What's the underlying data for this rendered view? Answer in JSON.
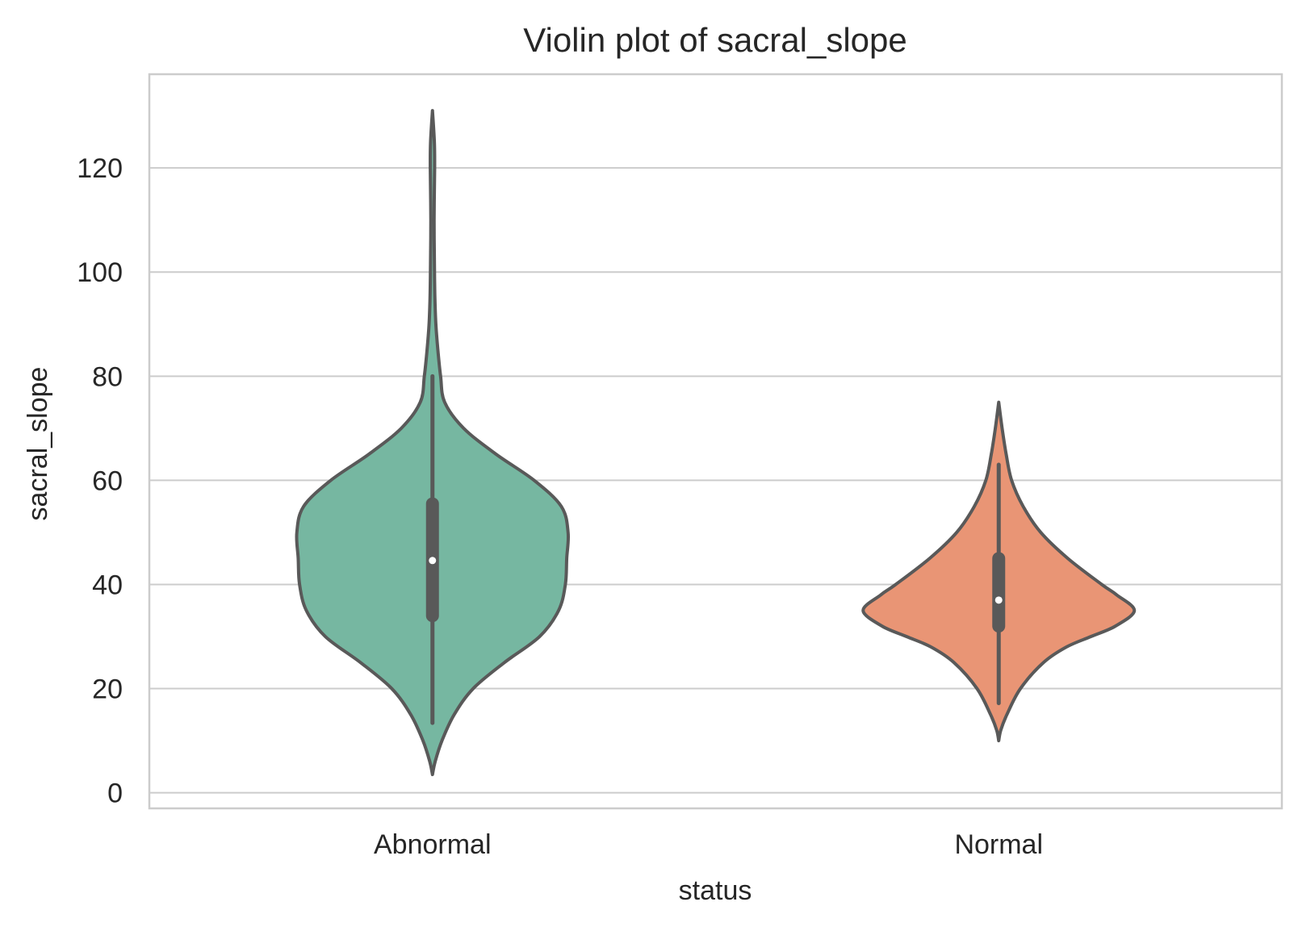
{
  "chart_data": {
    "type": "violin",
    "title": "Violin plot of sacral_slope",
    "xlabel": "status",
    "ylabel": "sacral_slope",
    "ylim": [
      -3,
      138
    ],
    "yticks": [
      0,
      20,
      40,
      60,
      80,
      100,
      120
    ],
    "grid": "horizontal",
    "categories": [
      "Abnormal",
      "Normal"
    ],
    "colors": {
      "Abnormal": "#76b7a1",
      "Normal": "#e99575",
      "outline": "#595959",
      "median_dot": "#ffffff",
      "grid": "#cccccc"
    },
    "series": [
      {
        "category": "Abnormal",
        "min": 3.5,
        "max": 131,
        "whisker_low": 13.4,
        "whisker_high": 80,
        "q1": 34,
        "median": 44.6,
        "q3": 55.5,
        "density": [
          [
            3.5,
            0.0
          ],
          [
            6,
            0.02
          ],
          [
            10,
            0.07
          ],
          [
            15,
            0.16
          ],
          [
            20,
            0.3
          ],
          [
            25,
            0.53
          ],
          [
            30,
            0.79
          ],
          [
            35,
            0.93
          ],
          [
            40,
            0.98
          ],
          [
            45,
            0.99
          ],
          [
            50,
            1.0
          ],
          [
            55,
            0.95
          ],
          [
            60,
            0.75
          ],
          [
            65,
            0.47
          ],
          [
            70,
            0.23
          ],
          [
            75,
            0.09
          ],
          [
            80,
            0.06
          ],
          [
            85,
            0.04
          ],
          [
            90,
            0.025
          ],
          [
            95,
            0.018
          ],
          [
            100,
            0.015
          ],
          [
            110,
            0.012
          ],
          [
            120,
            0.016
          ],
          [
            125,
            0.014
          ],
          [
            131,
            0.0
          ]
        ]
      },
      {
        "category": "Normal",
        "min": 10,
        "max": 75,
        "whisker_low": 17.2,
        "whisker_high": 63,
        "q1": 32,
        "median": 37,
        "q3": 45,
        "density": [
          [
            10,
            0.0
          ],
          [
            12,
            0.015
          ],
          [
            15,
            0.06
          ],
          [
            20,
            0.16
          ],
          [
            25,
            0.33
          ],
          [
            28,
            0.5
          ],
          [
            30,
            0.68
          ],
          [
            32,
            0.86
          ],
          [
            35,
            1.0
          ],
          [
            38,
            0.87
          ],
          [
            40,
            0.76
          ],
          [
            45,
            0.51
          ],
          [
            50,
            0.31
          ],
          [
            55,
            0.18
          ],
          [
            60,
            0.095
          ],
          [
            65,
            0.055
          ],
          [
            70,
            0.025
          ],
          [
            75,
            0.0
          ]
        ]
      }
    ]
  }
}
